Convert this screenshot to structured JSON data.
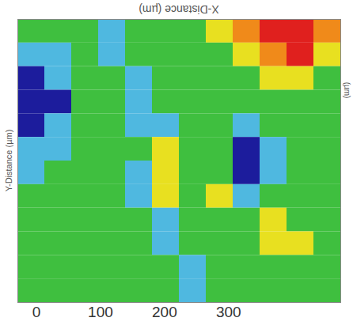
{
  "chart_data": {
    "type": "heatmap",
    "title": "X-Distance (µm)",
    "y_label": "Y-Distance (µm)",
    "annotations": [
      "(µm)"
    ],
    "xlim": [
      -29,
      475
    ],
    "xticks": [
      0,
      100,
      200,
      300
    ],
    "ylim": [
      0,
      480
    ],
    "tick_labels": "x",
    "cells": {
      "x": [
        -8,
        34,
        76,
        118,
        160,
        202,
        244,
        286,
        328,
        370,
        412,
        454
      ],
      "y": [
        460,
        420,
        380,
        340,
        300,
        260,
        220,
        180,
        140,
        100,
        60,
        20
      ],
      "values": [
        [
          2,
          2,
          2,
          1,
          2,
          2,
          2,
          3,
          4,
          5,
          5,
          4
        ],
        [
          1,
          1,
          2,
          1,
          2,
          2,
          2,
          2,
          3,
          4,
          5,
          3
        ],
        [
          0,
          1,
          2,
          2,
          1,
          2,
          2,
          2,
          2,
          3,
          3,
          2
        ],
        [
          0,
          0,
          2,
          2,
          1,
          2,
          2,
          2,
          2,
          2,
          2,
          2
        ],
        [
          0,
          1,
          2,
          2,
          1,
          1,
          2,
          2,
          1,
          2,
          2,
          2
        ],
        [
          1,
          1,
          2,
          2,
          2,
          3,
          2,
          2,
          0,
          1,
          2,
          2
        ],
        [
          1,
          2,
          2,
          2,
          1,
          3,
          2,
          2,
          0,
          1,
          2,
          2
        ],
        [
          2,
          2,
          2,
          2,
          1,
          3,
          2,
          3,
          1,
          2,
          2,
          2
        ],
        [
          2,
          2,
          2,
          2,
          2,
          1,
          2,
          2,
          2,
          3,
          2,
          2
        ],
        [
          2,
          2,
          2,
          2,
          2,
          1,
          2,
          2,
          2,
          3,
          3,
          2
        ],
        [
          2,
          2,
          2,
          2,
          2,
          2,
          1,
          2,
          2,
          2,
          2,
          2
        ],
        [
          2,
          2,
          2,
          2,
          2,
          2,
          1,
          2,
          2,
          2,
          2,
          2
        ]
      ],
      "zlim": [
        0,
        5
      ],
      "colors": [
        "#1c1c9c",
        "#4fb8e0",
        "#3fbf3f",
        "#e8e020",
        "#f08a1a",
        "#e0201e"
      ]
    }
  }
}
